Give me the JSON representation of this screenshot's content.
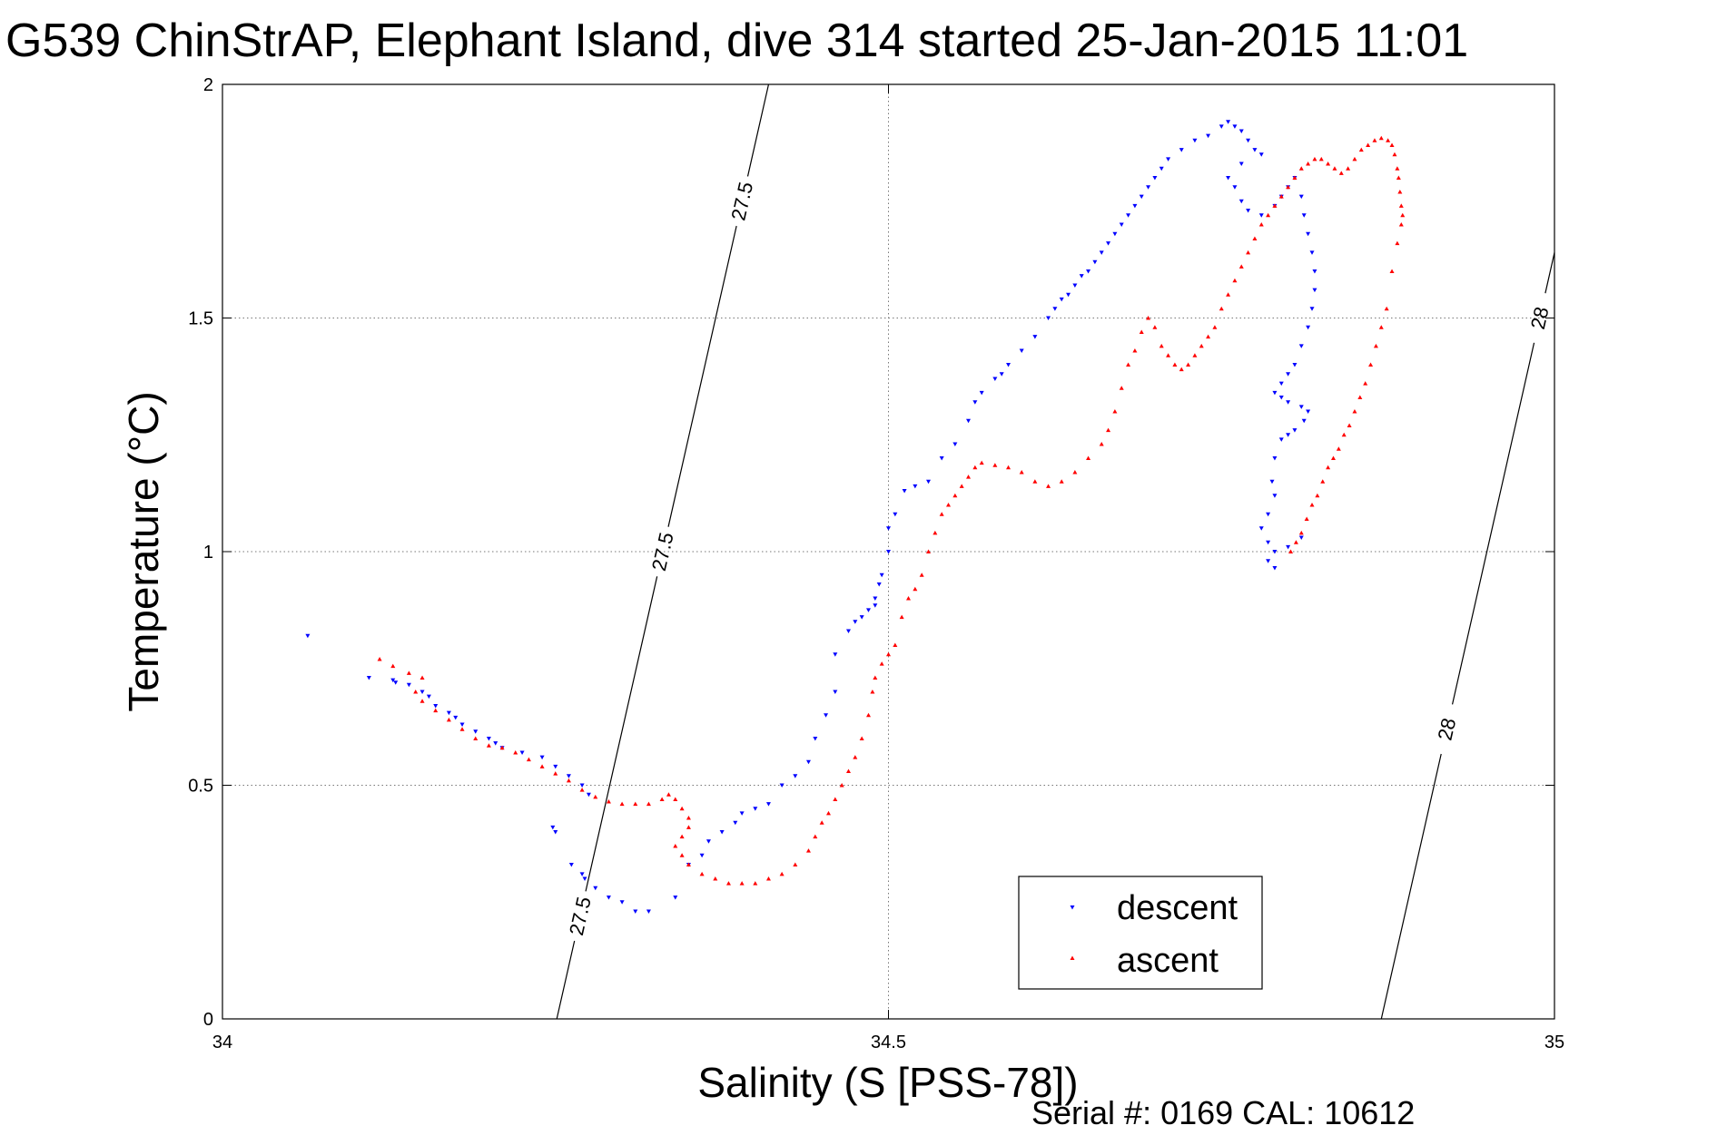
{
  "chart_data": {
    "type": "scatter",
    "title": "G539 ChinStrAP, Elephant Island, dive 314 started 25-Jan-2015 11:01",
    "xlabel": "Salinity (S [PSS-78])",
    "ylabel": "Temperature (°C)",
    "xlim": [
      34,
      35
    ],
    "ylim": [
      0,
      2
    ],
    "x_ticks": [
      34,
      34.5,
      35
    ],
    "x_tick_labels": [
      "34",
      "34.5",
      "35"
    ],
    "y_ticks": [
      0,
      0.5,
      1,
      1.5,
      2
    ],
    "y_tick_labels": [
      "0",
      "0.5",
      "1",
      "1.5",
      "2"
    ],
    "grid": true,
    "legend_position": "bottom-right",
    "contours": [
      {
        "label": "27.5",
        "points": [
          [
            34.251,
            0
          ],
          [
            34.41,
            2.0
          ]
        ],
        "labels_at": [
          0.22,
          1.0,
          1.75
        ]
      },
      {
        "label": "28",
        "points": [
          [
            34.87,
            0
          ],
          [
            35.0,
            1.64
          ]
        ],
        "labels_at": [
          0.62,
          1.5
        ]
      }
    ],
    "series": [
      {
        "name": "descent",
        "color": "#0000ff",
        "marker": "triangle-down",
        "points": [
          [
            34.064,
            0.82
          ],
          [
            34.11,
            0.73
          ],
          [
            34.128,
            0.725
          ],
          [
            34.13,
            0.72
          ],
          [
            34.14,
            0.715
          ],
          [
            34.15,
            0.7
          ],
          [
            34.155,
            0.69
          ],
          [
            34.16,
            0.67
          ],
          [
            34.17,
            0.655
          ],
          [
            34.175,
            0.645
          ],
          [
            34.18,
            0.63
          ],
          [
            34.19,
            0.615
          ],
          [
            34.2,
            0.6
          ],
          [
            34.205,
            0.59
          ],
          [
            34.21,
            0.58
          ],
          [
            34.225,
            0.57
          ],
          [
            34.24,
            0.56
          ],
          [
            34.25,
            0.54
          ],
          [
            34.26,
            0.52
          ],
          [
            34.27,
            0.5
          ],
          [
            34.275,
            0.48
          ],
          [
            34.248,
            0.41
          ],
          [
            34.25,
            0.4
          ],
          [
            34.262,
            0.33
          ],
          [
            34.27,
            0.31
          ],
          [
            34.272,
            0.3
          ],
          [
            34.28,
            0.28
          ],
          [
            34.29,
            0.26
          ],
          [
            34.3,
            0.25
          ],
          [
            34.31,
            0.23
          ],
          [
            34.32,
            0.23
          ],
          [
            34.34,
            0.26
          ],
          [
            34.35,
            0.33
          ],
          [
            34.36,
            0.35
          ],
          [
            34.365,
            0.38
          ],
          [
            34.375,
            0.4
          ],
          [
            34.385,
            0.42
          ],
          [
            34.39,
            0.44
          ],
          [
            34.4,
            0.45
          ],
          [
            34.41,
            0.46
          ],
          [
            34.42,
            0.5
          ],
          [
            34.43,
            0.52
          ],
          [
            34.44,
            0.55
          ],
          [
            34.445,
            0.6
          ],
          [
            34.453,
            0.65
          ],
          [
            34.46,
            0.7
          ],
          [
            34.46,
            0.78
          ],
          [
            34.47,
            0.83
          ],
          [
            34.475,
            0.85
          ],
          [
            34.48,
            0.86
          ],
          [
            34.485,
            0.875
          ],
          [
            34.49,
            0.885
          ],
          [
            34.49,
            0.9
          ],
          [
            34.493,
            0.93
          ],
          [
            34.495,
            0.95
          ],
          [
            34.5,
            1.0
          ],
          [
            34.5,
            1.05
          ],
          [
            34.505,
            1.08
          ],
          [
            34.512,
            1.13
          ],
          [
            34.52,
            1.14
          ],
          [
            34.53,
            1.15
          ],
          [
            34.54,
            1.2
          ],
          [
            34.55,
            1.23
          ],
          [
            34.56,
            1.28
          ],
          [
            34.565,
            1.32
          ],
          [
            34.57,
            1.34
          ],
          [
            34.58,
            1.37
          ],
          [
            34.585,
            1.38
          ],
          [
            34.59,
            1.4
          ],
          [
            34.6,
            1.43
          ],
          [
            34.61,
            1.46
          ],
          [
            34.62,
            1.5
          ],
          [
            34.625,
            1.52
          ],
          [
            34.63,
            1.54
          ],
          [
            34.635,
            1.55
          ],
          [
            34.64,
            1.57
          ],
          [
            34.645,
            1.59
          ],
          [
            34.65,
            1.6
          ],
          [
            34.655,
            1.62
          ],
          [
            34.66,
            1.64
          ],
          [
            34.665,
            1.66
          ],
          [
            34.67,
            1.68
          ],
          [
            34.675,
            1.7
          ],
          [
            34.68,
            1.72
          ],
          [
            34.685,
            1.74
          ],
          [
            34.69,
            1.76
          ],
          [
            34.695,
            1.78
          ],
          [
            34.7,
            1.8
          ],
          [
            34.705,
            1.82
          ],
          [
            34.71,
            1.84
          ],
          [
            34.72,
            1.86
          ],
          [
            34.73,
            1.88
          ],
          [
            34.74,
            1.89
          ],
          [
            34.75,
            1.91
          ],
          [
            34.755,
            1.92
          ],
          [
            34.76,
            1.91
          ],
          [
            34.765,
            1.9
          ],
          [
            34.77,
            1.88
          ],
          [
            34.775,
            1.86
          ],
          [
            34.78,
            1.85
          ],
          [
            34.765,
            1.83
          ],
          [
            34.755,
            1.8
          ],
          [
            34.76,
            1.78
          ],
          [
            34.765,
            1.75
          ],
          [
            34.77,
            1.73
          ],
          [
            34.78,
            1.72
          ],
          [
            34.79,
            1.74
          ],
          [
            34.795,
            1.76
          ],
          [
            34.8,
            1.78
          ],
          [
            34.805,
            1.8
          ],
          [
            34.81,
            1.76
          ],
          [
            34.812,
            1.72
          ],
          [
            34.815,
            1.68
          ],
          [
            34.818,
            1.64
          ],
          [
            34.82,
            1.6
          ],
          [
            34.82,
            1.56
          ],
          [
            34.818,
            1.52
          ],
          [
            34.815,
            1.48
          ],
          [
            34.81,
            1.44
          ],
          [
            34.805,
            1.4
          ],
          [
            34.8,
            1.38
          ],
          [
            34.795,
            1.36
          ],
          [
            34.79,
            1.34
          ],
          [
            34.795,
            1.33
          ],
          [
            34.8,
            1.32
          ],
          [
            34.81,
            1.31
          ],
          [
            34.815,
            1.3
          ],
          [
            34.812,
            1.28
          ],
          [
            34.805,
            1.26
          ],
          [
            34.8,
            1.25
          ],
          [
            34.795,
            1.24
          ],
          [
            34.79,
            1.2
          ],
          [
            34.788,
            1.15
          ],
          [
            34.79,
            1.12
          ],
          [
            34.785,
            1.08
          ],
          [
            34.78,
            1.05
          ],
          [
            34.785,
            1.02
          ],
          [
            34.79,
            1.0
          ],
          [
            34.785,
            0.98
          ],
          [
            34.79,
            0.965
          ],
          [
            34.8,
            1.01
          ],
          [
            34.81,
            1.03
          ]
        ]
      },
      {
        "name": "ascent",
        "color": "#ff0000",
        "marker": "triangle-up",
        "points": [
          [
            34.118,
            0.77
          ],
          [
            34.128,
            0.755
          ],
          [
            34.14,
            0.74
          ],
          [
            34.15,
            0.73
          ],
          [
            34.145,
            0.7
          ],
          [
            34.15,
            0.68
          ],
          [
            34.16,
            0.66
          ],
          [
            34.17,
            0.64
          ],
          [
            34.18,
            0.62
          ],
          [
            34.19,
            0.6
          ],
          [
            34.2,
            0.585
          ],
          [
            34.21,
            0.58
          ],
          [
            34.22,
            0.57
          ],
          [
            34.23,
            0.555
          ],
          [
            34.24,
            0.54
          ],
          [
            34.25,
            0.525
          ],
          [
            34.26,
            0.51
          ],
          [
            34.27,
            0.49
          ],
          [
            34.28,
            0.475
          ],
          [
            34.29,
            0.465
          ],
          [
            34.3,
            0.46
          ],
          [
            34.31,
            0.46
          ],
          [
            34.32,
            0.46
          ],
          [
            34.33,
            0.47
          ],
          [
            34.335,
            0.48
          ],
          [
            34.34,
            0.47
          ],
          [
            34.345,
            0.45
          ],
          [
            34.35,
            0.43
          ],
          [
            34.35,
            0.41
          ],
          [
            34.345,
            0.39
          ],
          [
            34.34,
            0.37
          ],
          [
            34.345,
            0.35
          ],
          [
            34.35,
            0.33
          ],
          [
            34.36,
            0.31
          ],
          [
            34.37,
            0.3
          ],
          [
            34.38,
            0.29
          ],
          [
            34.39,
            0.29
          ],
          [
            34.4,
            0.29
          ],
          [
            34.41,
            0.3
          ],
          [
            34.42,
            0.31
          ],
          [
            34.43,
            0.33
          ],
          [
            34.44,
            0.36
          ],
          [
            34.445,
            0.39
          ],
          [
            34.45,
            0.42
          ],
          [
            34.455,
            0.44
          ],
          [
            34.46,
            0.47
          ],
          [
            34.465,
            0.5
          ],
          [
            34.47,
            0.53
          ],
          [
            34.475,
            0.56
          ],
          [
            34.48,
            0.6
          ],
          [
            34.485,
            0.65
          ],
          [
            34.488,
            0.7
          ],
          [
            34.49,
            0.73
          ],
          [
            34.495,
            0.76
          ],
          [
            34.5,
            0.78
          ],
          [
            34.505,
            0.8
          ],
          [
            34.51,
            0.86
          ],
          [
            34.515,
            0.9
          ],
          [
            34.52,
            0.92
          ],
          [
            34.525,
            0.95
          ],
          [
            34.53,
            1.0
          ],
          [
            34.535,
            1.04
          ],
          [
            34.54,
            1.08
          ],
          [
            34.545,
            1.1
          ],
          [
            34.55,
            1.12
          ],
          [
            34.555,
            1.14
          ],
          [
            34.56,
            1.16
          ],
          [
            34.565,
            1.18
          ],
          [
            34.57,
            1.19
          ],
          [
            34.58,
            1.185
          ],
          [
            34.59,
            1.18
          ],
          [
            34.6,
            1.17
          ],
          [
            34.61,
            1.15
          ],
          [
            34.62,
            1.14
          ],
          [
            34.63,
            1.15
          ],
          [
            34.64,
            1.17
          ],
          [
            34.65,
            1.2
          ],
          [
            34.66,
            1.23
          ],
          [
            34.665,
            1.26
          ],
          [
            34.67,
            1.3
          ],
          [
            34.675,
            1.35
          ],
          [
            34.68,
            1.4
          ],
          [
            34.685,
            1.43
          ],
          [
            34.69,
            1.47
          ],
          [
            34.695,
            1.5
          ],
          [
            34.7,
            1.48
          ],
          [
            34.705,
            1.44
          ],
          [
            34.71,
            1.42
          ],
          [
            34.715,
            1.4
          ],
          [
            34.72,
            1.39
          ],
          [
            34.725,
            1.4
          ],
          [
            34.73,
            1.42
          ],
          [
            34.735,
            1.44
          ],
          [
            34.74,
            1.46
          ],
          [
            34.745,
            1.48
          ],
          [
            34.75,
            1.52
          ],
          [
            34.755,
            1.55
          ],
          [
            34.76,
            1.58
          ],
          [
            34.765,
            1.61
          ],
          [
            34.77,
            1.64
          ],
          [
            34.775,
            1.67
          ],
          [
            34.78,
            1.7
          ],
          [
            34.785,
            1.72
          ],
          [
            34.79,
            1.74
          ],
          [
            34.795,
            1.76
          ],
          [
            34.8,
            1.78
          ],
          [
            34.805,
            1.8
          ],
          [
            34.81,
            1.82
          ],
          [
            34.815,
            1.83
          ],
          [
            34.82,
            1.84
          ],
          [
            34.825,
            1.84
          ],
          [
            34.83,
            1.83
          ],
          [
            34.835,
            1.82
          ],
          [
            34.84,
            1.81
          ],
          [
            34.845,
            1.82
          ],
          [
            34.85,
            1.84
          ],
          [
            34.855,
            1.86
          ],
          [
            34.86,
            1.87
          ],
          [
            34.865,
            1.88
          ],
          [
            34.87,
            1.885
          ],
          [
            34.875,
            1.88
          ],
          [
            34.878,
            1.87
          ],
          [
            34.88,
            1.85
          ],
          [
            34.882,
            1.82
          ],
          [
            34.883,
            1.8
          ],
          [
            34.884,
            1.77
          ],
          [
            34.885,
            1.74
          ],
          [
            34.886,
            1.72
          ],
          [
            34.885,
            1.7
          ],
          [
            34.882,
            1.66
          ],
          [
            34.878,
            1.6
          ],
          [
            34.874,
            1.52
          ],
          [
            34.87,
            1.48
          ],
          [
            34.866,
            1.44
          ],
          [
            34.862,
            1.4
          ],
          [
            34.858,
            1.36
          ],
          [
            34.854,
            1.33
          ],
          [
            34.85,
            1.3
          ],
          [
            34.846,
            1.27
          ],
          [
            34.842,
            1.25
          ],
          [
            34.838,
            1.22
          ],
          [
            34.834,
            1.2
          ],
          [
            34.83,
            1.18
          ],
          [
            34.826,
            1.15
          ],
          [
            34.822,
            1.12
          ],
          [
            34.818,
            1.1
          ],
          [
            34.814,
            1.07
          ],
          [
            34.81,
            1.04
          ],
          [
            34.806,
            1.02
          ],
          [
            34.802,
            1.0
          ]
        ]
      }
    ]
  },
  "footer": {
    "serial_text": "Serial #: 0169 CAL: 10612"
  }
}
